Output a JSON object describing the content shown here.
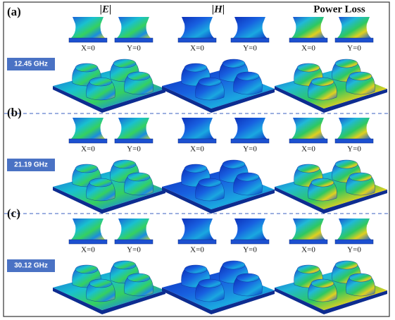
{
  "columns": [
    "|E|",
    "|H|",
    "Power Loss"
  ],
  "panels": [
    {
      "label": "(a)",
      "frequency": "12.45 GHz",
      "views": [
        [
          "X=0",
          "Y=0"
        ],
        [
          "X=0",
          "Y=0"
        ],
        [
          "X=0",
          "Y=0"
        ]
      ]
    },
    {
      "label": "(b)",
      "frequency": "21.19 GHz",
      "views": [
        [
          "X=0",
          "Y=0"
        ],
        [
          "X=0",
          "Y=0"
        ],
        [
          "X=0",
          "Y=0"
        ]
      ]
    },
    {
      "label": "(c)",
      "frequency": "30.12 GHz",
      "views": [
        [
          "X=0",
          "Y=0"
        ],
        [
          "X=0",
          "Y=0"
        ],
        [
          "X=0",
          "Y=0"
        ]
      ]
    }
  ]
}
